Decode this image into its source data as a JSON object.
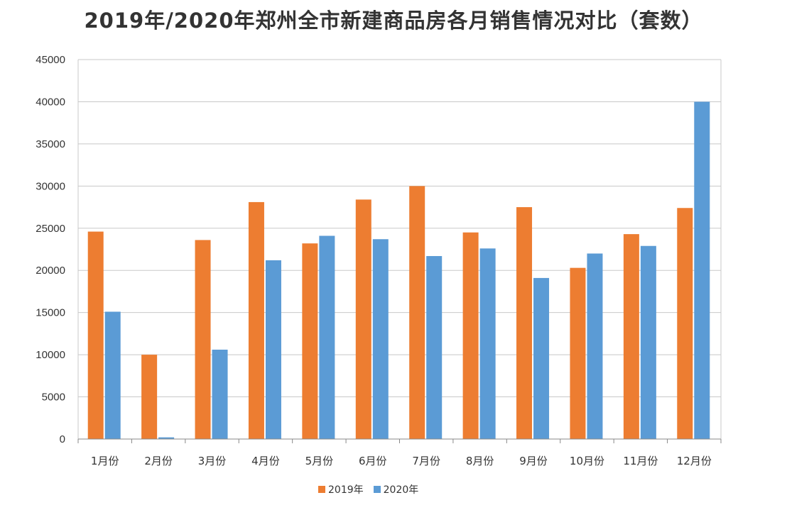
{
  "chart_data": {
    "type": "bar",
    "title": "2019年/2020年郑州全市新建商品房各月销售情况对比（套数）",
    "categories": [
      "1月份",
      "2月份",
      "3月份",
      "4月份",
      "5月份",
      "6月份",
      "7月份",
      "8月份",
      "9月份",
      "10月份",
      "11月份",
      "12月份"
    ],
    "series": [
      {
        "name": "2019年",
        "color": "#ED7D31",
        "values": [
          24600,
          10000,
          23600,
          28100,
          23200,
          28400,
          30000,
          24500,
          27500,
          20300,
          24300,
          27400
        ]
      },
      {
        "name": "2020年",
        "color": "#5B9BD5",
        "values": [
          15100,
          200,
          10600,
          21200,
          24100,
          23700,
          21700,
          22600,
          19100,
          22000,
          22900,
          40000
        ]
      }
    ],
    "ylim": [
      0,
      45000
    ],
    "yticks": [
      0,
      5000,
      10000,
      15000,
      20000,
      25000,
      30000,
      35000,
      40000,
      45000
    ],
    "xlabel": "",
    "ylabel": "",
    "grid": true,
    "legend_position": "bottom"
  }
}
